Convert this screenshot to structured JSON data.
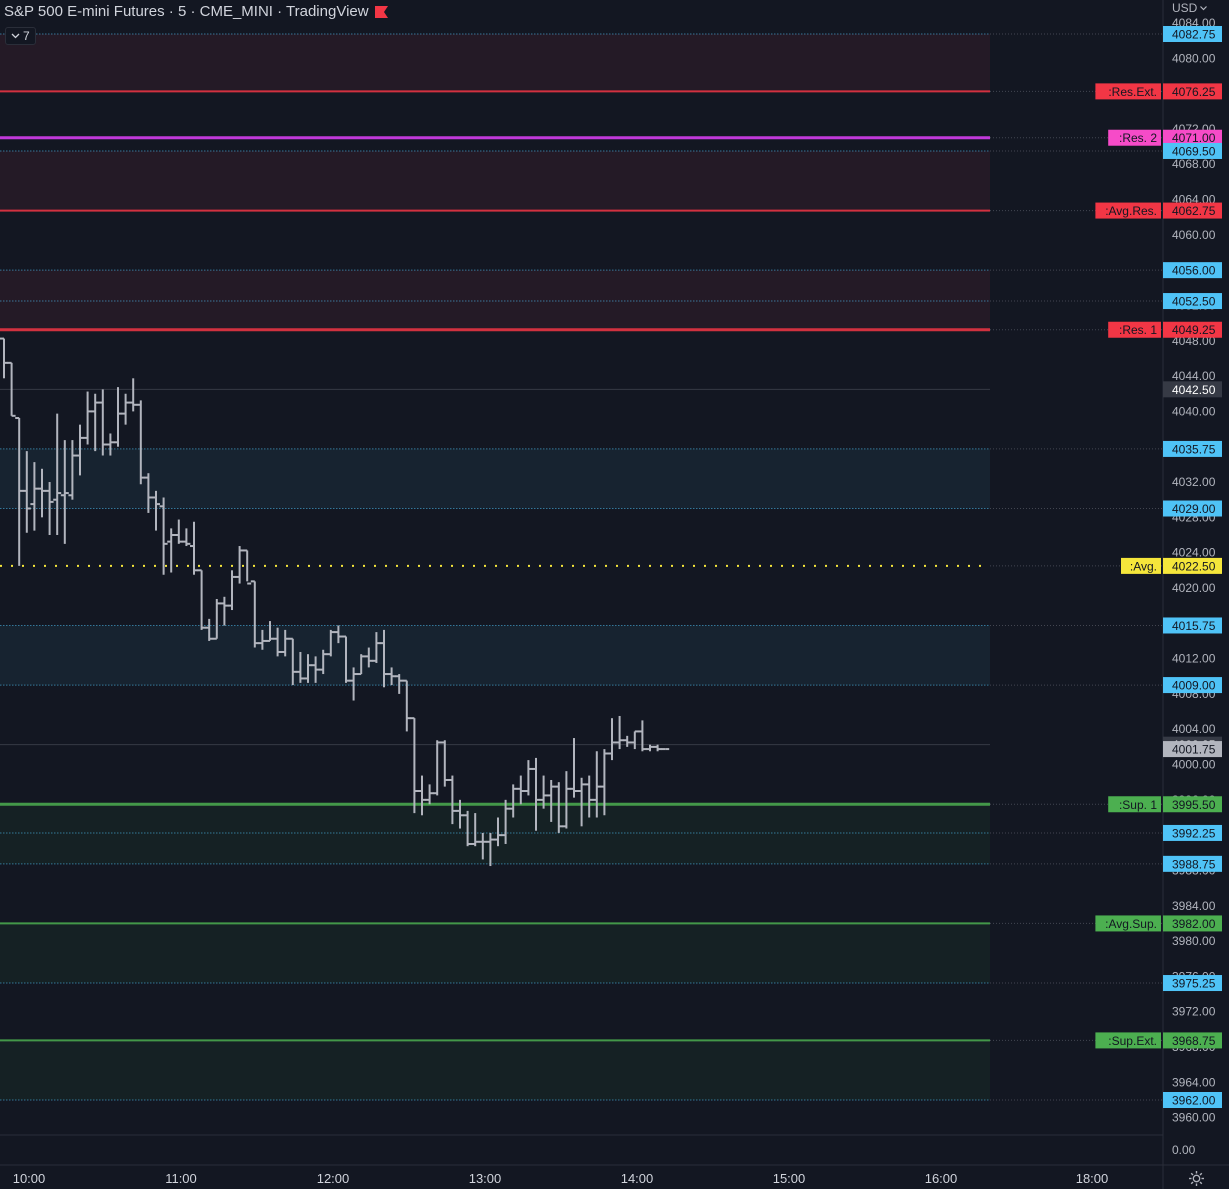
{
  "header": {
    "title": "S&P 500 E-mini Futures · 5 · CME_MINI · TradingView",
    "indicator_pill": "7",
    "currency": "USD"
  },
  "icons": {
    "flag": "flag-icon",
    "chevron": "chevron-down-icon",
    "settings": "gear-icon"
  },
  "chart_data": {
    "type": "ohlc",
    "symbol": "S&P 500 E-mini Futures",
    "interval": "5",
    "exchange": "CME_MINI",
    "ylim": [
      3958.5,
      4083.5
    ],
    "x_ticks": [
      "10:00",
      "11:00",
      "12:00",
      "13:00",
      "14:00",
      "15:00",
      "16:00",
      "18:00"
    ],
    "y_ticks": [
      "4084.00",
      "4080.00",
      "4076.00",
      "4072.00",
      "4068.00",
      "4064.00",
      "4060.00",
      "4056.00",
      "4052.00",
      "4048.00",
      "4044.00",
      "4040.00",
      "4036.00",
      "4032.00",
      "4028.00",
      "4024.00",
      "4020.00",
      "4016.00",
      "4012.00",
      "4008.00",
      "4004.00",
      "4000.00",
      "3996.00",
      "3992.00",
      "3988.00",
      "3984.00",
      "3980.00",
      "3976.00",
      "3972.00",
      "3968.00",
      "3964.00",
      "3960.00"
    ],
    "bottom_pane_tick": "0.00",
    "last_price": "4001.75",
    "series": [
      {
        "o": 4048.25,
        "h": 4048.25,
        "l": 4043.75,
        "c": 4045.5
      },
      {
        "o": 4045.5,
        "h": 4045.5,
        "l": 4039.5,
        "c": 4039.5
      },
      {
        "o": 4039.25,
        "h": 4039.25,
        "l": 4022.5,
        "c": 4031.0
      },
      {
        "o": 4031.0,
        "h": 4035.5,
        "l": 4026.25,
        "c": 4029.0
      },
      {
        "o": 4029.5,
        "h": 4034.25,
        "l": 4026.5,
        "c": 4031.25
      },
      {
        "o": 4031.25,
        "h": 4033.5,
        "l": 4028.0,
        "c": 4031.0
      },
      {
        "o": 4031.0,
        "h": 4032.0,
        "l": 4026.0,
        "c": 4029.75
      },
      {
        "o": 4030.0,
        "h": 4039.75,
        "l": 4026.0,
        "c": 4030.75
      },
      {
        "o": 4030.5,
        "h": 4036.75,
        "l": 4025.0,
        "c": 4030.75
      },
      {
        "o": 4030.5,
        "h": 4036.75,
        "l": 4030.0,
        "c": 4035.0
      },
      {
        "o": 4035.0,
        "h": 4038.5,
        "l": 4032.75,
        "c": 4037.0
      },
      {
        "o": 4037.0,
        "h": 4042.25,
        "l": 4036.25,
        "c": 4040.0
      },
      {
        "o": 4040.0,
        "h": 4042.0,
        "l": 4035.5,
        "c": 4041.0
      },
      {
        "o": 4041.0,
        "h": 4042.5,
        "l": 4035.0,
        "c": 4036.25
      },
      {
        "o": 4036.25,
        "h": 4037.5,
        "l": 4035.0,
        "c": 4036.5
      },
      {
        "o": 4036.5,
        "h": 4042.75,
        "l": 4036.0,
        "c": 4039.75
      },
      {
        "o": 4039.75,
        "h": 4042.0,
        "l": 4038.5,
        "c": 4041.0
      },
      {
        "o": 4041.0,
        "h": 4043.75,
        "l": 4040.0,
        "c": 4040.75
      },
      {
        "o": 4040.75,
        "h": 4041.25,
        "l": 4031.75,
        "c": 4032.5
      },
      {
        "o": 4032.5,
        "h": 4033.0,
        "l": 4028.5,
        "c": 4030.25
      },
      {
        "o": 4030.25,
        "h": 4031.0,
        "l": 4026.5,
        "c": 4029.5
      },
      {
        "o": 4029.25,
        "h": 4030.25,
        "l": 4021.5,
        "c": 4025.0
      },
      {
        "o": 4025.25,
        "h": 4026.75,
        "l": 4021.75,
        "c": 4026.0
      },
      {
        "o": 4026.0,
        "h": 4027.75,
        "l": 4025.0,
        "c": 4025.25
      },
      {
        "o": 4025.25,
        "h": 4026.75,
        "l": 4024.75,
        "c": 4025.0
      },
      {
        "o": 4024.75,
        "h": 4027.5,
        "l": 4021.5,
        "c": 4022.0
      },
      {
        "o": 4022.0,
        "h": 4022.0,
        "l": 4015.25,
        "c": 4015.5
      },
      {
        "o": 4015.5,
        "h": 4016.5,
        "l": 4014.0,
        "c": 4014.25
      },
      {
        "o": 4014.25,
        "h": 4018.75,
        "l": 4014.25,
        "c": 4018.25
      },
      {
        "o": 4018.25,
        "h": 4019.0,
        "l": 4015.75,
        "c": 4018.0
      },
      {
        "o": 4018.0,
        "h": 4022.0,
        "l": 4017.5,
        "c": 4021.25
      },
      {
        "o": 4021.25,
        "h": 4024.75,
        "l": 4020.5,
        "c": 4024.25
      },
      {
        "o": 4024.25,
        "h": 4024.25,
        "l": 4020.75,
        "c": 4020.5
      },
      {
        "o": 4020.75,
        "h": 4020.75,
        "l": 4013.25,
        "c": 4013.75
      },
      {
        "o": 4013.75,
        "h": 4015.25,
        "l": 4013.0,
        "c": 4014.0
      },
      {
        "o": 4014.0,
        "h": 4016.25,
        "l": 4014.0,
        "c": 4014.25
      },
      {
        "o": 4014.25,
        "h": 4015.5,
        "l": 4012.25,
        "c": 4012.75
      },
      {
        "o": 4012.75,
        "h": 4015.25,
        "l": 4012.25,
        "c": 4014.25
      },
      {
        "o": 4014.25,
        "h": 4014.25,
        "l": 4009.0,
        "c": 4010.5
      },
      {
        "o": 4010.5,
        "h": 4012.75,
        "l": 4009.25,
        "c": 4009.75
      },
      {
        "o": 4009.75,
        "h": 4012.5,
        "l": 4009.25,
        "c": 4011.25
      },
      {
        "o": 4011.25,
        "h": 4012.25,
        "l": 4009.25,
        "c": 4010.75
      },
      {
        "o": 4010.75,
        "h": 4013.0,
        "l": 4010.25,
        "c": 4012.5
      },
      {
        "o": 4012.5,
        "h": 4015.25,
        "l": 4012.25,
        "c": 4015.0
      },
      {
        "o": 4015.0,
        "h": 4015.75,
        "l": 4013.75,
        "c": 4014.5
      },
      {
        "o": 4014.5,
        "h": 4014.5,
        "l": 4009.25,
        "c": 4009.5
      },
      {
        "o": 4009.5,
        "h": 4011.0,
        "l": 4007.25,
        "c": 4010.25
      },
      {
        "o": 4010.25,
        "h": 4012.5,
        "l": 4010.25,
        "c": 4012.25
      },
      {
        "o": 4012.25,
        "h": 4013.25,
        "l": 4011.0,
        "c": 4011.75
      },
      {
        "o": 4011.75,
        "h": 4015.0,
        "l": 4011.5,
        "c": 4013.75
      },
      {
        "o": 4013.75,
        "h": 4015.25,
        "l": 4008.75,
        "c": 4010.25
      },
      {
        "o": 4010.25,
        "h": 4011.0,
        "l": 4009.0,
        "c": 4010.0
      },
      {
        "o": 4010.0,
        "h": 4010.25,
        "l": 4008.0,
        "c": 4009.5
      },
      {
        "o": 4009.5,
        "h": 4009.5,
        "l": 4003.75,
        "c": 4005.25
      },
      {
        "o": 4005.25,
        "h": 4005.25,
        "l": 3994.5,
        "c": 3997.0
      },
      {
        "o": 3997.0,
        "h": 3998.75,
        "l": 3994.25,
        "c": 3996.0
      },
      {
        "o": 3996.0,
        "h": 3997.75,
        "l": 3995.5,
        "c": 3996.75
      },
      {
        "o": 3996.75,
        "h": 4002.75,
        "l": 3996.5,
        "c": 4002.5
      },
      {
        "o": 4002.5,
        "h": 4002.75,
        "l": 3997.5,
        "c": 3998.25
      },
      {
        "o": 3998.25,
        "h": 3998.75,
        "l": 3993.25,
        "c": 3994.75
      },
      {
        "o": 3994.75,
        "h": 3996.0,
        "l": 3992.75,
        "c": 3994.25
      },
      {
        "o": 3994.25,
        "h": 3994.75,
        "l": 3990.75,
        "c": 3991.0
      },
      {
        "o": 3991.0,
        "h": 3994.5,
        "l": 3990.75,
        "c": 3991.25
      },
      {
        "o": 3991.25,
        "h": 3992.25,
        "l": 3989.25,
        "c": 3991.25
      },
      {
        "o": 3991.25,
        "h": 3992.25,
        "l": 3988.5,
        "c": 3991.5
      },
      {
        "o": 3991.5,
        "h": 3994.0,
        "l": 3990.75,
        "c": 3992.0
      },
      {
        "o": 3992.0,
        "h": 3996.0,
        "l": 3991.0,
        "c": 3995.0
      },
      {
        "o": 3995.0,
        "h": 3997.75,
        "l": 3994.0,
        "c": 3997.25
      },
      {
        "o": 3997.25,
        "h": 3998.75,
        "l": 3995.5,
        "c": 3997.0
      },
      {
        "o": 3997.0,
        "h": 4000.5,
        "l": 3996.5,
        "c": 3999.5
      },
      {
        "o": 3999.5,
        "h": 4000.75,
        "l": 3992.5,
        "c": 3996.0
      },
      {
        "o": 3996.0,
        "h": 3998.75,
        "l": 3995.0,
        "c": 3996.5
      },
      {
        "o": 3996.5,
        "h": 3998.25,
        "l": 3993.5,
        "c": 3997.5
      },
      {
        "o": 3997.5,
        "h": 3998.0,
        "l": 3992.25,
        "c": 3993.0
      },
      {
        "o": 3993.0,
        "h": 3999.25,
        "l": 3992.75,
        "c": 3997.25
      },
      {
        "o": 3997.25,
        "h": 4003.0,
        "l": 3996.25,
        "c": 3997.0
      },
      {
        "o": 3997.0,
        "h": 3998.5,
        "l": 3993.0,
        "c": 3997.75
      },
      {
        "o": 3997.75,
        "h": 3998.75,
        "l": 3994.0,
        "c": 3996.0
      },
      {
        "o": 3996.0,
        "h": 4001.5,
        "l": 3994.0,
        "c": 3997.5
      },
      {
        "o": 3997.5,
        "h": 4001.75,
        "l": 3994.25,
        "c": 4001.25
      },
      {
        "o": 4001.25,
        "h": 4005.25,
        "l": 4000.5,
        "c": 4002.5
      },
      {
        "o": 4002.5,
        "h": 4005.5,
        "l": 4001.75,
        "c": 4002.75
      },
      {
        "o": 4002.75,
        "h": 4003.25,
        "l": 4002.0,
        "c": 4002.5
      },
      {
        "o": 4002.5,
        "h": 4003.75,
        "l": 4001.75,
        "c": 4003.75
      },
      {
        "o": 4003.75,
        "h": 4005.0,
        "l": 4001.5,
        "c": 4001.75
      },
      {
        "o": 4001.75,
        "h": 4002.25,
        "l": 4001.5,
        "c": 4002.0
      },
      {
        "o": 4002.0,
        "h": 4002.25,
        "l": 4001.5,
        "c": 4001.75
      },
      {
        "o": 4001.75,
        "h": 4001.75,
        "l": 4001.75,
        "c": 4001.75
      }
    ],
    "levels": [
      {
        "price": 4082.75,
        "label": "",
        "color": "#4fc3f7",
        "style": "dotted"
      },
      {
        "price": 4076.25,
        "label": ":Res.Ext.",
        "color": "#f23645",
        "style": "solid"
      },
      {
        "price": 4071.0,
        "label": ":Res. 2",
        "color": "#e040fb",
        "style": "solid"
      },
      {
        "price": 4069.5,
        "label": "",
        "color": "#4fc3f7",
        "style": "dotted"
      },
      {
        "price": 4062.75,
        "label": ":Avg.Res.",
        "color": "#f23645",
        "style": "solid"
      },
      {
        "price": 4056.0,
        "label": "",
        "color": "#4fc3f7",
        "style": "dotted"
      },
      {
        "price": 4052.5,
        "label": "",
        "color": "#4fc3f7",
        "style": "dotted"
      },
      {
        "price": 4049.25,
        "label": ":Res. 1",
        "color": "#f23645",
        "style": "solid"
      },
      {
        "price": 4035.75,
        "label": "",
        "color": "#4fc3f7",
        "style": "dotted"
      },
      {
        "price": 4029.0,
        "label": "",
        "color": "#4fc3f7",
        "style": "dotted"
      },
      {
        "price": 4022.5,
        "label": ":Avg.",
        "color": "#f5e63b",
        "style": "dot"
      },
      {
        "price": 4015.75,
        "label": "",
        "color": "#4fc3f7",
        "style": "dotted"
      },
      {
        "price": 4009.0,
        "label": "",
        "color": "#4fc3f7",
        "style": "dotted"
      },
      {
        "price": 3995.5,
        "label": ":Sup. 1",
        "color": "#4caf50",
        "style": "solid"
      },
      {
        "price": 3992.25,
        "label": "",
        "color": "#4fc3f7",
        "style": "dotted"
      },
      {
        "price": 3988.75,
        "label": "",
        "color": "#4fc3f7",
        "style": "dotted"
      },
      {
        "price": 3982.0,
        "label": ":Avg.Sup.",
        "color": "#4caf50",
        "style": "solid"
      },
      {
        "price": 3975.25,
        "label": "",
        "color": "#4fc3f7",
        "style": "dotted"
      },
      {
        "price": 3968.75,
        "label": ":Sup.Ext.",
        "color": "#4caf50",
        "style": "solid"
      },
      {
        "price": 3962.0,
        "label": "",
        "color": "#4fc3f7",
        "style": "dotted"
      }
    ],
    "gray_levels": [
      4042.5,
      4002.25
    ],
    "zones": [
      {
        "from": 4076.25,
        "to": 4082.75,
        "color": "#241a26"
      },
      {
        "from": 4062.75,
        "to": 4069.5,
        "color": "#241a26"
      },
      {
        "from": 4049.25,
        "to": 4056.0,
        "color": "#241a26"
      },
      {
        "from": 4029.0,
        "to": 4035.75,
        "color": "#172330"
      },
      {
        "from": 4009.0,
        "to": 4015.75,
        "color": "#172330"
      },
      {
        "from": 3988.75,
        "to": 3995.5,
        "color": "#152124"
      },
      {
        "from": 3975.25,
        "to": 3982.0,
        "color": "#152124"
      },
      {
        "from": 3962.0,
        "to": 3968.75,
        "color": "#152124"
      }
    ]
  }
}
